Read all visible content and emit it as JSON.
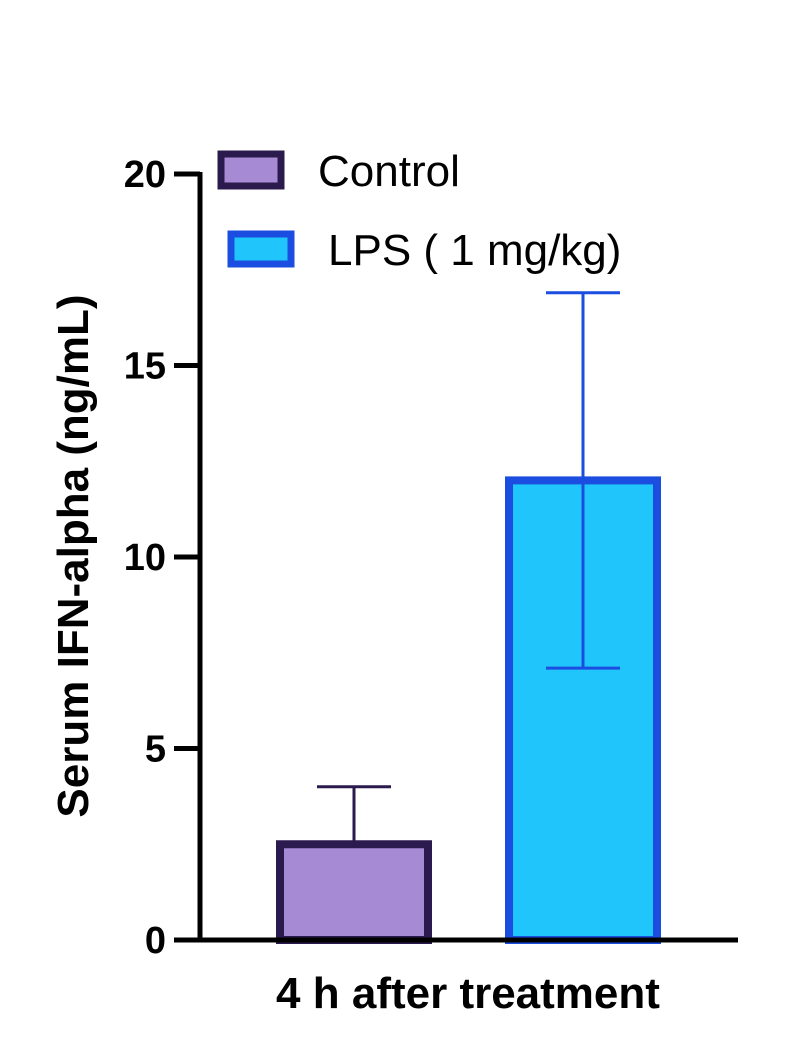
{
  "chart_data": {
    "type": "bar",
    "xlabel": "4 h after treatment",
    "ylabel": "Serum IFN-alpha (ng/mL)",
    "ylim": [
      0,
      20
    ],
    "yticks": [
      0,
      5,
      10,
      15,
      20
    ],
    "ytick_labels": [
      "0",
      "5",
      "10",
      "15",
      "20"
    ],
    "legend_position": "top-left",
    "series": [
      {
        "name": "Control",
        "value": 2.5,
        "error_low": 0,
        "error_high": 4.0,
        "fill": "#a68bd4",
        "stroke": "#2b1a4d",
        "error_color": "#2b1a4d"
      },
      {
        "name": "LPS ( 1 mg/kg)",
        "value": 12.0,
        "error_low": 7.1,
        "error_high": 16.9,
        "fill": "#20c6fb",
        "stroke": "#1a4de0",
        "error_color": "#1a4de0"
      }
    ]
  }
}
